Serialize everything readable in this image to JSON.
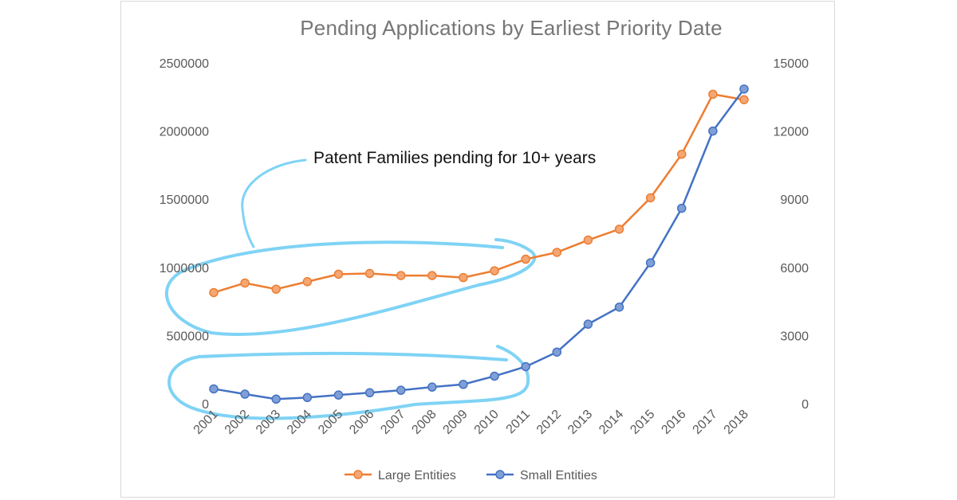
{
  "chart_data": {
    "type": "line",
    "title": "Pending Applications by Earliest Priority Date",
    "xlabel": "",
    "ylabel": "",
    "categories": [
      "2001",
      "2002",
      "2003",
      "2004",
      "2005",
      "2006",
      "2007",
      "2008",
      "2009",
      "2010",
      "2011",
      "2012",
      "2013",
      "2014",
      "2015",
      "2016",
      "2017",
      "2018"
    ],
    "y_left_ticks": [
      "0",
      "500000",
      "1000000",
      "1500000",
      "2000000",
      "2500000"
    ],
    "y_right_ticks": [
      "0",
      "3000",
      "6000",
      "9000",
      "12000",
      "15000"
    ],
    "ylim_left": [
      0,
      2500000
    ],
    "ylim_right": [
      0,
      15000
    ],
    "grid": false,
    "legend_position": "bottom",
    "series": [
      {
        "name": "Large Entities",
        "axis": "left",
        "color": "#ED7D31",
        "values": [
          815000,
          885000,
          840000,
          895000,
          950000,
          955000,
          940000,
          940000,
          925000,
          975000,
          1060000,
          1110000,
          1200000,
          1280000,
          1510000,
          1830000,
          2270000,
          2230000
        ]
      },
      {
        "name": "Small Entities",
        "axis": "right",
        "color": "#4472C4",
        "values": [
          650,
          420,
          200,
          270,
          380,
          480,
          590,
          730,
          850,
          1210,
          1630,
          2270,
          3500,
          4250,
          6200,
          8600,
          12000,
          13850
        ]
      }
    ],
    "annotations": [
      {
        "text": "Patent Families pending for 10+ years",
        "color": "#7fd3f5"
      }
    ]
  }
}
